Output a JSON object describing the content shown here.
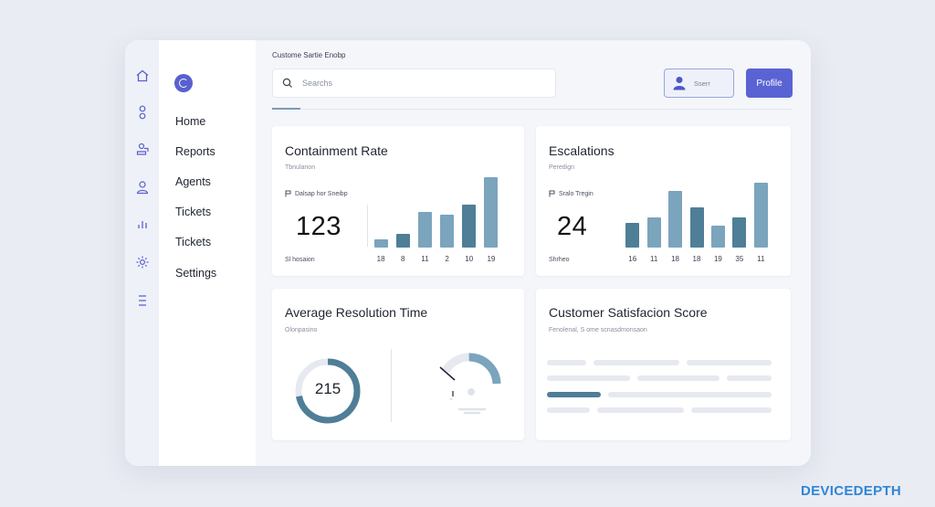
{
  "colors": {
    "accent": "#5a63d3",
    "bar_light": "#7ba4bd",
    "bar_dark": "#4f7e97",
    "ring": "#4f7e97",
    "ring_track": "#e6e9f0"
  },
  "rail": {
    "icons": [
      "home-icon",
      "tag-icon",
      "users-icon",
      "user-icon",
      "chart-icon",
      "gear-icon",
      "list-icon"
    ]
  },
  "sidebar": {
    "items": [
      {
        "label": "Home"
      },
      {
        "label": "Reports"
      },
      {
        "label": "Agents"
      },
      {
        "label": "Tickets"
      },
      {
        "label": "Tickets"
      },
      {
        "label": "Settings"
      }
    ]
  },
  "header": {
    "breadcrumb": "Custome Sartie Enobp",
    "search_placeholder": "Searchs",
    "user_label": "Sserr",
    "profile_label": "Profile"
  },
  "cards": {
    "containment": {
      "title": "Containment Rate",
      "subtitle": "Tbnulanon",
      "meta": "Dalsap hor Sneibp",
      "value": "123",
      "footer": "Sl hosaion"
    },
    "escalations": {
      "title": "Escalations",
      "subtitle": "Peredign",
      "meta": "Sralo Tregin",
      "value": "24",
      "footer": "Shrheo"
    },
    "resolution": {
      "title": "Average Resolution Time",
      "subtitle": "Olonpasino",
      "value": "215",
      "progress": 0.72,
      "gauge": 0.6
    },
    "satisfaction": {
      "title": "Customer Satisfacion Score",
      "subtitle": "Fenolenal, S ome scnasdmonsaon"
    }
  },
  "chart_data": [
    {
      "type": "bar",
      "title": "Containment Rate",
      "categories": [
        "18",
        "8",
        "11",
        "2",
        "10",
        "19"
      ],
      "values": [
        1.5,
        2.5,
        6.5,
        6.0,
        8.0,
        13.0
      ],
      "ylim": [
        0,
        14
      ]
    },
    {
      "type": "bar",
      "title": "Escalations",
      "categories": [
        "16",
        "11",
        "18",
        "18",
        "19",
        "35",
        "11"
      ],
      "values": [
        4.5,
        5.5,
        10.5,
        7.5,
        4.0,
        5.5,
        12.0
      ],
      "ylim": [
        0,
        14
      ]
    }
  ]
}
